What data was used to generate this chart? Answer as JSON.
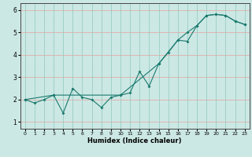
{
  "title": "",
  "xlabel": "Humidex (Indice chaleur)",
  "bg_color": "#cce8e4",
  "line_color": "#1a7a6e",
  "grid_color_h": "#e8a0a0",
  "grid_color_v": "#8ec8c0",
  "xlim": [
    -0.5,
    23.5
  ],
  "ylim": [
    0.7,
    6.3
  ],
  "xticks": [
    0,
    1,
    2,
    3,
    4,
    5,
    6,
    7,
    8,
    9,
    10,
    11,
    12,
    13,
    14,
    15,
    16,
    17,
    18,
    19,
    20,
    21,
    22,
    23
  ],
  "yticks": [
    1,
    2,
    3,
    4,
    5,
    6
  ],
  "line1_x": [
    0,
    1,
    2,
    3,
    4,
    5,
    6,
    7,
    8,
    9,
    10,
    11,
    12,
    13,
    14,
    15,
    16,
    17,
    18,
    19,
    20,
    21,
    22,
    23
  ],
  "line1_y": [
    2.0,
    1.85,
    2.0,
    2.2,
    1.4,
    2.5,
    2.1,
    2.0,
    1.65,
    2.1,
    2.2,
    2.3,
    3.25,
    2.6,
    3.6,
    4.1,
    4.65,
    5.0,
    5.3,
    5.75,
    5.8,
    5.75,
    5.5,
    5.35
  ],
  "line2_x": [
    0,
    3,
    10,
    14,
    16,
    17,
    18,
    19,
    20,
    21,
    22,
    23
  ],
  "line2_y": [
    2.0,
    2.2,
    2.2,
    3.6,
    4.65,
    4.6,
    5.3,
    5.75,
    5.8,
    5.75,
    5.5,
    5.35
  ]
}
